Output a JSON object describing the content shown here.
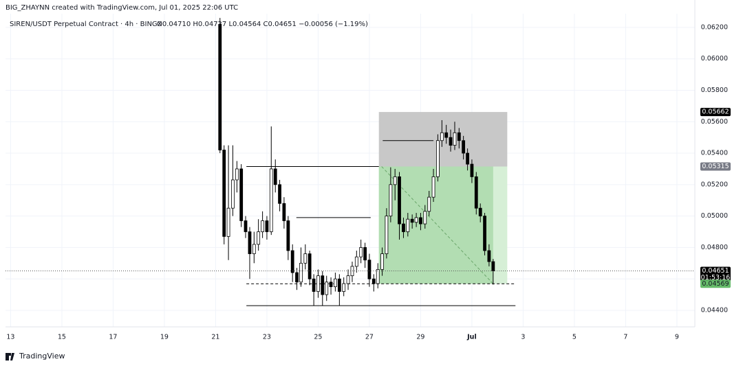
{
  "header": {
    "credit": "BIG_ZHAYNN created with TradingView.com, Jul 01, 2025 22:06 UTC",
    "symbol": "SIREN/USDT Perpetual Contract · 4h · BINGX",
    "ohlc": "O0.04710 H0.04727 L0.04564 C0.04651 −0.00056 (−1.19%)"
  },
  "logo": "TradingView",
  "chart_data": {
    "type": "candlestick",
    "up_color": "#ffffff",
    "down_color": "#000000",
    "border_color": "#000000",
    "xlim": [
      12.8,
      39.7
    ],
    "ylim": [
      0.04295,
      0.06287
    ],
    "xticks": [
      13,
      15,
      17,
      19,
      21,
      23,
      25,
      27,
      29,
      {
        "value": 31,
        "label": "Jul"
      },
      {
        "value": 33,
        "label": "3"
      },
      {
        "value": 35,
        "label": "5"
      },
      {
        "value": 37,
        "label": "7"
      },
      {
        "value": 39,
        "label": "9"
      }
    ],
    "yticks": [
      {
        "value": 0.044,
        "label": "0.04400"
      },
      {
        "value": 0.046,
        "label": "0.04600"
      },
      {
        "value": 0.048,
        "label": "0.04800"
      },
      {
        "value": 0.05,
        "label": "0.05000"
      },
      {
        "value": 0.052,
        "label": "0.05200"
      },
      {
        "value": 0.054,
        "label": "0.05400"
      },
      {
        "value": 0.056,
        "label": "0.05600"
      },
      {
        "value": 0.058,
        "label": "0.05800"
      },
      {
        "value": 0.06,
        "label": "0.06000"
      },
      {
        "value": 0.062,
        "label": "0.06200"
      }
    ],
    "grid": true,
    "x": [
      21.17,
      21.33,
      21.5,
      21.67,
      21.83,
      22,
      22.17,
      22.33,
      22.5,
      22.67,
      22.83,
      23,
      23.17,
      23.33,
      23.5,
      23.67,
      23.83,
      24,
      24.17,
      24.33,
      24.5,
      24.67,
      24.83,
      25,
      25.17,
      25.33,
      25.5,
      25.67,
      25.83,
      26,
      26.17,
      26.33,
      26.5,
      26.67,
      26.83,
      27,
      27.17,
      27.33,
      27.5,
      27.67,
      27.83,
      28,
      28.17,
      28.33,
      28.5,
      28.67,
      28.83,
      29,
      29.17,
      29.33,
      29.5,
      29.67,
      29.83,
      30,
      30.17,
      30.33,
      30.5,
      30.67,
      30.83,
      31,
      31.17,
      31.33,
      31.5,
      31.67,
      31.83
    ],
    "open": [
      0.0622,
      0.0542,
      0.0487,
      0.0505,
      0.0523,
      0.053,
      0.0497,
      0.049,
      0.0476,
      0.0482,
      0.049,
      0.0497,
      0.049,
      0.053,
      0.052,
      0.0508,
      0.0497,
      0.0478,
      0.0464,
      0.0458,
      0.047,
      0.0476,
      0.046,
      0.0452,
      0.0462,
      0.045,
      0.0458,
      0.0455,
      0.046,
      0.0452,
      0.0457,
      0.0462,
      0.0468,
      0.0474,
      0.048,
      0.0472,
      0.046,
      0.0457,
      0.0466,
      0.0476,
      0.05,
      0.052,
      0.0525,
      0.0495,
      0.049,
      0.0498,
      0.0496,
      0.0499,
      0.0495,
      0.0503,
      0.0512,
      0.0525,
      0.0548,
      0.0553,
      0.055,
      0.0545,
      0.0553,
      0.0548,
      0.054,
      0.0533,
      0.0525,
      0.0505,
      0.05,
      0.0478,
      0.0471
    ],
    "high": [
      0.0626,
      0.0545,
      0.0545,
      0.0545,
      0.0535,
      0.0533,
      0.05,
      0.0493,
      0.049,
      0.0498,
      0.0503,
      0.05,
      0.0557,
      0.0536,
      0.0523,
      0.0512,
      0.05,
      0.0482,
      0.0467,
      0.048,
      0.0482,
      0.0478,
      0.0463,
      0.0466,
      0.0465,
      0.0462,
      0.0461,
      0.0464,
      0.0463,
      0.0461,
      0.0466,
      0.0471,
      0.0478,
      0.0485,
      0.0483,
      0.0476,
      0.0463,
      0.047,
      0.048,
      0.0505,
      0.0531,
      0.053,
      0.0528,
      0.0499,
      0.0502,
      0.0501,
      0.0502,
      0.0502,
      0.0507,
      0.0516,
      0.053,
      0.0552,
      0.0561,
      0.0558,
      0.0555,
      0.056,
      0.0556,
      0.0551,
      0.0543,
      0.0536,
      0.0528,
      0.0508,
      0.0502,
      0.0482,
      0.04727
    ],
    "low": [
      0.054,
      0.0482,
      0.0472,
      0.05,
      0.0515,
      0.0493,
      0.0486,
      0.046,
      0.047,
      0.0478,
      0.0486,
      0.0485,
      0.0488,
      0.0515,
      0.0503,
      0.0492,
      0.0472,
      0.0458,
      0.0453,
      0.0455,
      0.0466,
      0.0456,
      0.0443,
      0.0448,
      0.0443,
      0.0446,
      0.045,
      0.0452,
      0.0443,
      0.0449,
      0.0453,
      0.0458,
      0.0464,
      0.047,
      0.0467,
      0.0455,
      0.0452,
      0.0454,
      0.0462,
      0.0473,
      0.0496,
      0.051,
      0.0485,
      0.0486,
      0.0487,
      0.0492,
      0.0493,
      0.0491,
      0.0492,
      0.05,
      0.0509,
      0.0522,
      0.0544,
      0.0546,
      0.0541,
      0.0542,
      0.0543,
      0.0536,
      0.0529,
      0.0521,
      0.0501,
      0.0496,
      0.0475,
      0.0468,
      0.04564
    ],
    "close": [
      0.0542,
      0.0487,
      0.0505,
      0.0523,
      0.053,
      0.0497,
      0.049,
      0.0476,
      0.0482,
      0.049,
      0.0497,
      0.049,
      0.053,
      0.052,
      0.0508,
      0.0497,
      0.0478,
      0.0464,
      0.0458,
      0.047,
      0.0476,
      0.046,
      0.0452,
      0.0462,
      0.045,
      0.0458,
      0.0455,
      0.046,
      0.0452,
      0.0457,
      0.0462,
      0.0468,
      0.0474,
      0.048,
      0.0472,
      0.046,
      0.0457,
      0.0466,
      0.0476,
      0.05,
      0.052,
      0.0525,
      0.0495,
      0.049,
      0.0498,
      0.0496,
      0.0499,
      0.0495,
      0.0503,
      0.0512,
      0.0525,
      0.0548,
      0.0553,
      0.055,
      0.0545,
      0.0553,
      0.0548,
      0.054,
      0.0533,
      0.0525,
      0.0505,
      0.05,
      0.0478,
      0.0471,
      0.04651
    ],
    "levels": [
      {
        "y": 0.05315,
        "x": [
          22.2,
          27.37
        ],
        "style": "solid"
      },
      {
        "y": 0.0548,
        "x": [
          27.52,
          29.5
        ],
        "style": "solid"
      },
      {
        "y": 0.0499,
        "x": [
          24.15,
          27.05
        ],
        "style": "solid"
      },
      {
        "y": 0.0443,
        "x": [
          22.2,
          32.7
        ],
        "style": "solid"
      },
      {
        "y": 0.04569,
        "x": [
          22.2,
          32.7
        ],
        "style": "dashed"
      }
    ],
    "position": {
      "stop": 0.05662,
      "entry": 0.05315,
      "target": 0.04569,
      "x": [
        27.37,
        32.38
      ],
      "current_x": 31.83
    },
    "price_tags": [
      {
        "value": 0.05662,
        "label": "0.05662",
        "color": "#000000"
      },
      {
        "value": 0.05315,
        "label": "0.05315",
        "color": "#787b86"
      },
      {
        "value": 0.04651,
        "label": "0.04651",
        "color": "#000000",
        "countdown": "01:53:16"
      },
      {
        "value": 0.04569,
        "label": "0.04569",
        "color": "#66bb6a"
      }
    ]
  }
}
